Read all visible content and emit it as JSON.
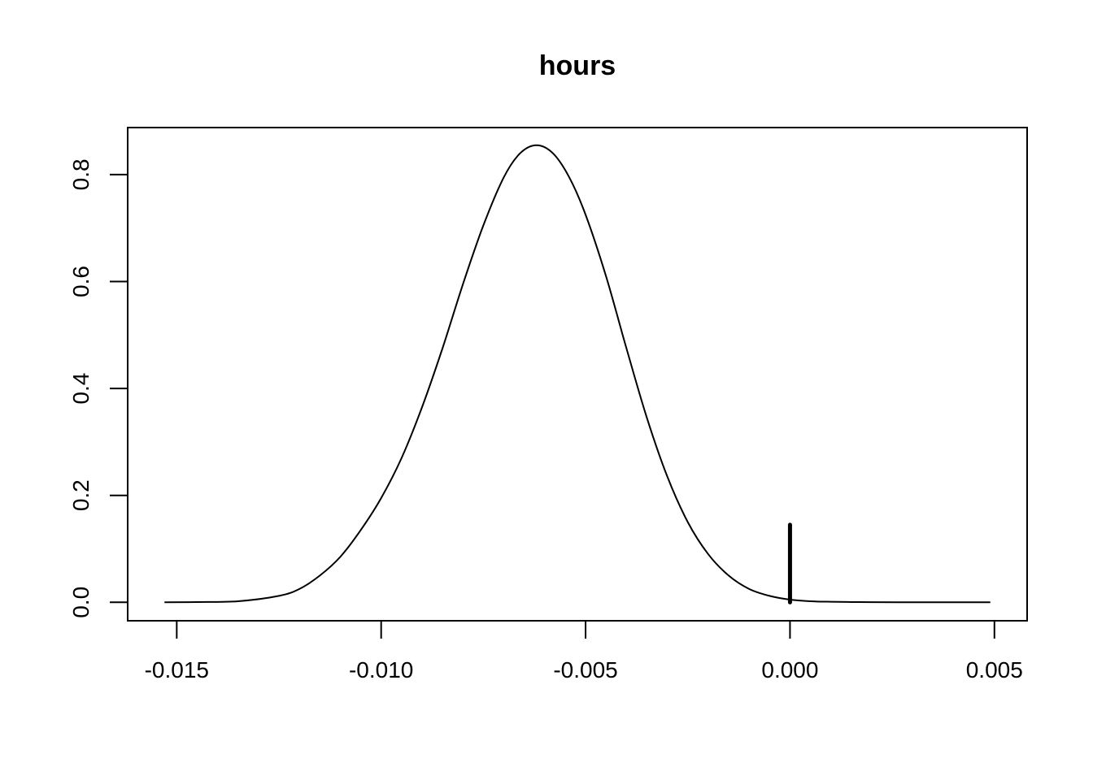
{
  "chart_data": {
    "type": "line",
    "title": "hours",
    "xlabel": "",
    "ylabel": "",
    "xlim": [
      -0.0162,
      0.0058
    ],
    "ylim": [
      -0.0345,
      0.888
    ],
    "x_ticks": [
      -0.015,
      -0.01,
      -0.005,
      0.0,
      0.005
    ],
    "x_tick_labels": [
      "-0.015",
      "-0.010",
      "-0.005",
      "0.000",
      "0.005"
    ],
    "y_ticks": [
      0.0,
      0.2,
      0.4,
      0.6,
      0.8
    ],
    "y_tick_labels": [
      "0.0",
      "0.2",
      "0.4",
      "0.6",
      "0.8"
    ],
    "grid": false,
    "series": [
      {
        "x": [
          -0.0153,
          -0.0145,
          -0.0135,
          -0.0125,
          -0.012,
          -0.0115,
          -0.011,
          -0.0105,
          -0.01,
          -0.0095,
          -0.009,
          -0.0085,
          -0.008,
          -0.0075,
          -0.007,
          -0.0066,
          -0.0062,
          -0.0058,
          -0.0054,
          -0.005,
          -0.0045,
          -0.004,
          -0.0035,
          -0.003,
          -0.0025,
          -0.002,
          -0.0015,
          -0.001,
          -0.0005,
          0.0,
          0.0005,
          0.001,
          0.0015,
          0.002,
          0.003,
          0.004,
          0.0049
        ],
        "y": [
          0.0,
          0.0005,
          0.002,
          0.012,
          0.025,
          0.05,
          0.085,
          0.135,
          0.195,
          0.27,
          0.365,
          0.475,
          0.595,
          0.705,
          0.795,
          0.84,
          0.855,
          0.84,
          0.795,
          0.725,
          0.61,
          0.475,
          0.345,
          0.235,
          0.15,
          0.09,
          0.05,
          0.025,
          0.012,
          0.005,
          0.002,
          0.001,
          0.0005,
          0.0002,
          0.0001,
          0.0,
          0.0
        ]
      }
    ],
    "reference_line": {
      "x": 0.0,
      "y_from": 0.0,
      "y_to": 0.145
    }
  }
}
